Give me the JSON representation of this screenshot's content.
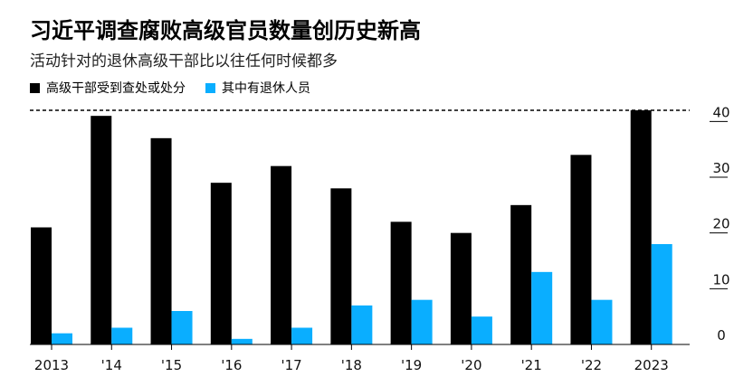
{
  "title": "习近平调查腐败高级官员数量创历史新高",
  "subtitle": "活动针对的退休高级干部比以往任何时候都多",
  "colors": {
    "series_a": "#000000",
    "series_b": "#0aaeff"
  },
  "chart_data": {
    "type": "bar",
    "categories": [
      "2013",
      "'14",
      "'15",
      "'16",
      "'17",
      "'18",
      "'19",
      "'20",
      "'21",
      "'22",
      "2023"
    ],
    "series": [
      {
        "name": "高级干部受到查处或处分",
        "values": [
          21,
          41,
          37,
          29,
          32,
          28,
          22,
          20,
          25,
          34,
          42
        ]
      },
      {
        "name": "其中有退休人员",
        "values": [
          2,
          3,
          6,
          1,
          3,
          7,
          8,
          5,
          13,
          8,
          18
        ]
      }
    ],
    "ylim": [
      0,
      42
    ],
    "yticks": [
      0,
      10,
      20,
      30,
      40
    ],
    "reference_line": 42,
    "xlabel": "",
    "ylabel": "",
    "grid": false,
    "legend_position": "top-left"
  }
}
